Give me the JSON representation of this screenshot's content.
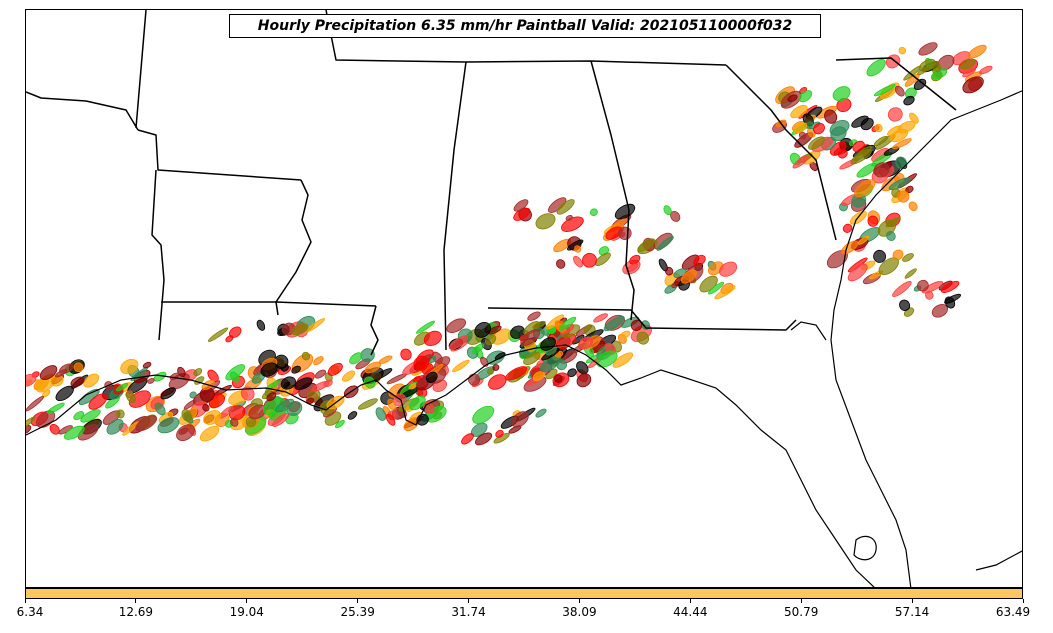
{
  "title": "Hourly Precipitation 6.35 mm/hr Paintball Valid: 202105110000f032",
  "colorbar": {
    "color": "#ffc561",
    "ticks": [
      "6.34",
      "12.69",
      "19.04",
      "25.39",
      "31.74",
      "38.09",
      "44.44",
      "50.79",
      "57.14",
      "63.49"
    ]
  },
  "map": {
    "region": "US Southeast / Gulf Coast",
    "paintball_colors": [
      "#ff0000",
      "#ff7f00",
      "#ffa500",
      "#808000",
      "#1fd11f",
      "#8b0000",
      "#a52a2a",
      "#2e8b57",
      "#000000",
      "#ff4040"
    ]
  }
}
